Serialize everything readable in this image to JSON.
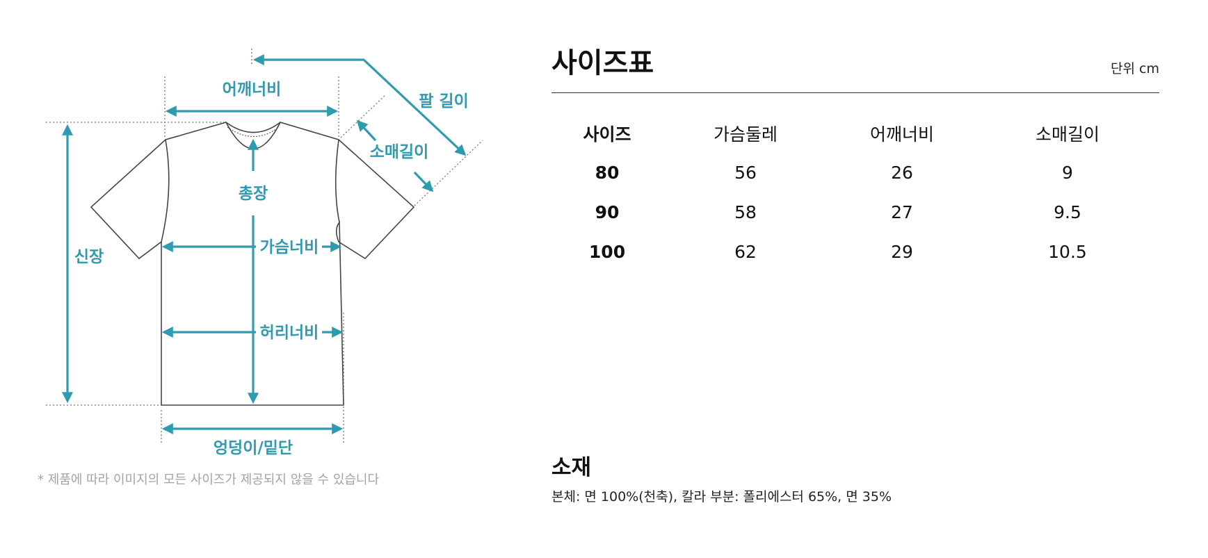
{
  "diagram": {
    "labels": {
      "shoulder": "어깨너비",
      "arm_length": "팔 길이",
      "sleeve": "소매길이",
      "total_length": "총장",
      "height": "신장",
      "chest": "가슴너비",
      "waist": "허리너비",
      "hem": "엉덩이/밑단"
    },
    "footnote": "* 제품에 따라 이미지의 모든 사이즈가 제공되지 않을 수 있습니다"
  },
  "size_chart": {
    "title": "사이즈표",
    "unit": "단위 cm",
    "headers": [
      "사이즈",
      "가슴둘레",
      "어깨너비",
      "소매길이"
    ],
    "rows": [
      {
        "size": "80",
        "chest": "56",
        "shoulder": "26",
        "sleeve": "9"
      },
      {
        "size": "90",
        "chest": "58",
        "shoulder": "27",
        "sleeve": "9.5"
      },
      {
        "size": "100",
        "chest": "62",
        "shoulder": "29",
        "sleeve": "10.5"
      }
    ]
  },
  "material": {
    "title": "소재",
    "text": "본체: 면 100%(천축), 칼라 부분: 폴리에스터 65%, 면 35%"
  },
  "colors": {
    "accent": "#2e9bb0",
    "outline": "#444444",
    "guide": "#777777",
    "footnote": "#a3a3a3"
  }
}
